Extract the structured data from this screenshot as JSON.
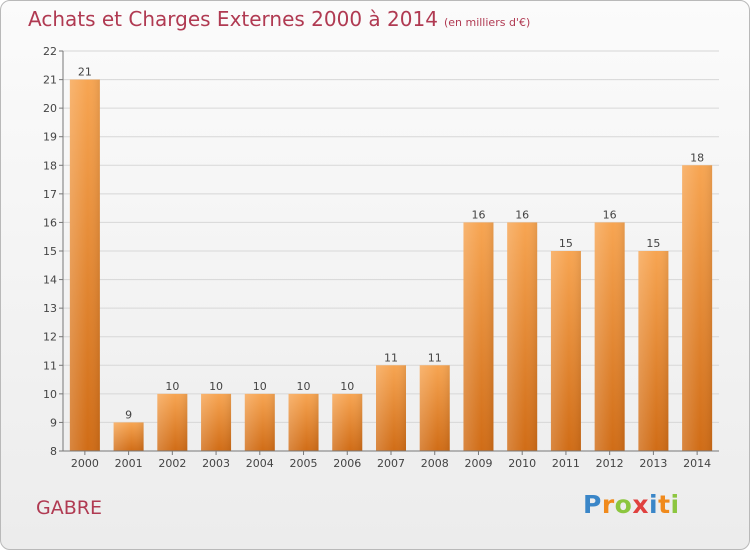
{
  "title": "Achats et Charges Externes 2000 à 2014",
  "subtitle": "(en milliers d'€)",
  "commune": "GABRE",
  "logo": {
    "letters": [
      {
        "ch": "P",
        "color": "#3a86c8"
      },
      {
        "ch": "r",
        "color": "#f08a1c"
      },
      {
        "ch": "o",
        "color": "#8cc63f"
      },
      {
        "ch": "x",
        "color": "#e0413f"
      },
      {
        "ch": "i",
        "color": "#3a86c8"
      },
      {
        "ch": "t",
        "color": "#f08a1c"
      },
      {
        "ch": "i",
        "color": "#8cc63f"
      }
    ]
  },
  "chart_data": {
    "type": "bar",
    "categories": [
      "2000",
      "2001",
      "2002",
      "2003",
      "2004",
      "2005",
      "2006",
      "2007",
      "2008",
      "2009",
      "2010",
      "2011",
      "2012",
      "2013",
      "2014"
    ],
    "values": [
      21,
      9,
      10,
      10,
      10,
      10,
      10,
      11,
      11,
      16,
      16,
      15,
      16,
      15,
      18
    ],
    "ylim": [
      8,
      22
    ],
    "yticks": [
      8,
      9,
      10,
      11,
      12,
      13,
      14,
      15,
      16,
      17,
      18,
      19,
      20,
      21,
      22
    ],
    "grid": true,
    "bar_color": "#f0913a"
  }
}
